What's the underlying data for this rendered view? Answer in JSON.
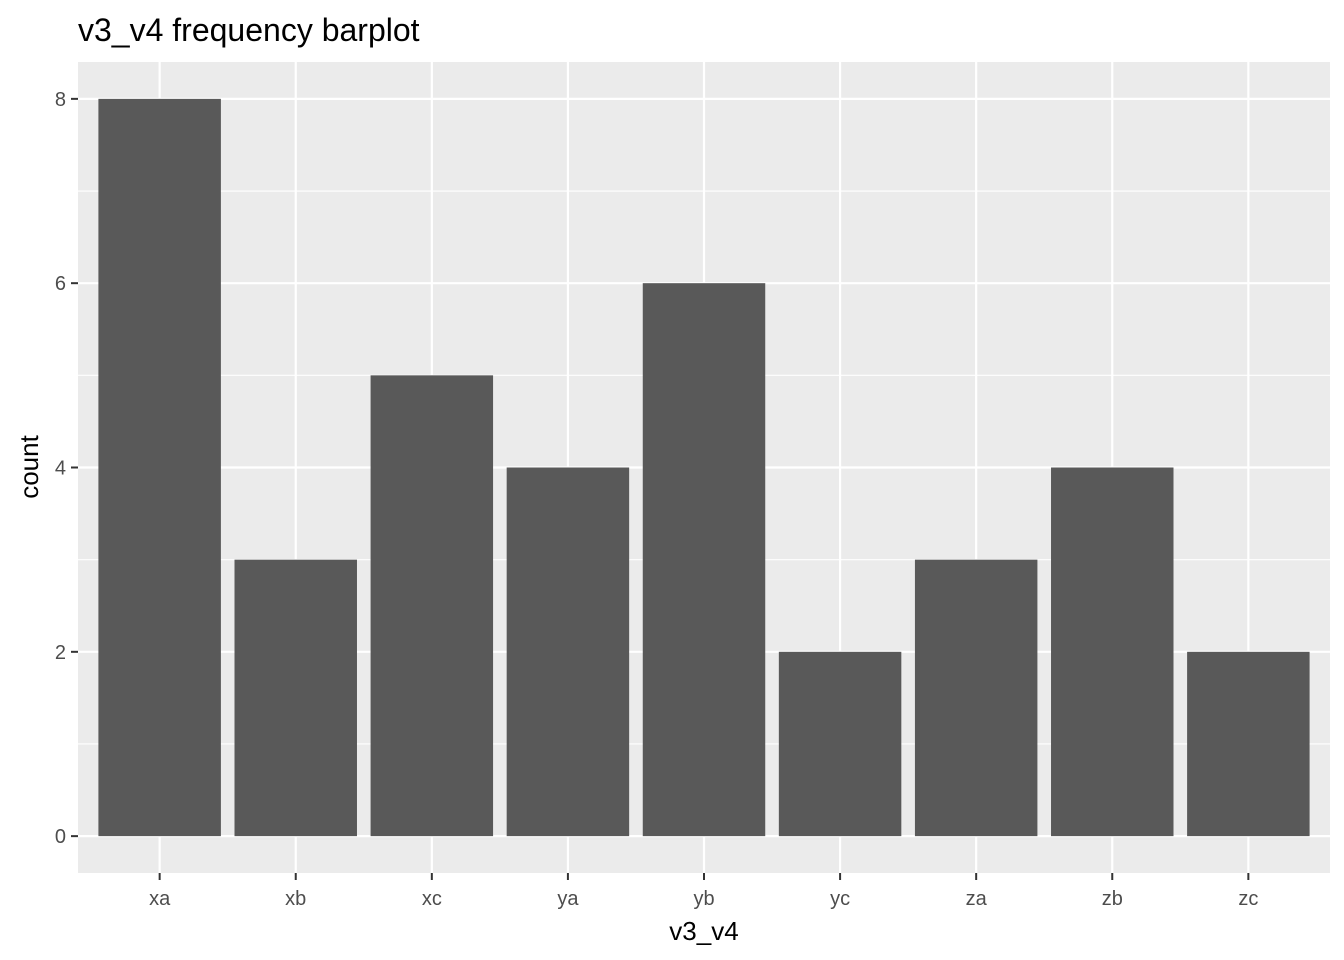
{
  "chart_data": {
    "type": "bar",
    "title": "v3_v4 frequency barplot",
    "xlabel": "v3_v4",
    "ylabel": "count",
    "categories": [
      "xa",
      "xb",
      "xc",
      "ya",
      "yb",
      "yc",
      "za",
      "zb",
      "zc"
    ],
    "values": [
      8,
      3,
      5,
      4,
      6,
      2,
      3,
      4,
      2
    ],
    "ylim": [
      -0.4,
      8.4
    ],
    "yticks": [
      0,
      2,
      4,
      6,
      8
    ],
    "grid": true,
    "legend": "none"
  },
  "colors": {
    "panel_background": "#ebebeb",
    "grid_major": "#ffffff",
    "bar_fill": "#595959",
    "tick_text": "#4d4d4d",
    "tick_mark": "#333333"
  }
}
